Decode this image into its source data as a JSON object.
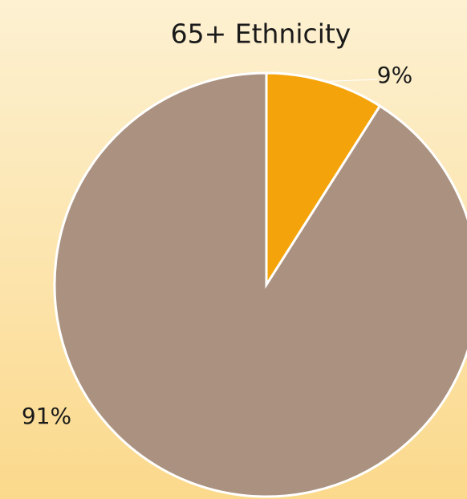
{
  "chart_data": {
    "type": "pie",
    "title": "65+ Ethnicity",
    "values": [
      9,
      91
    ],
    "value_labels": [
      "9%",
      "91%"
    ],
    "colors": [
      "#f4a40a",
      "#ab9280"
    ]
  }
}
